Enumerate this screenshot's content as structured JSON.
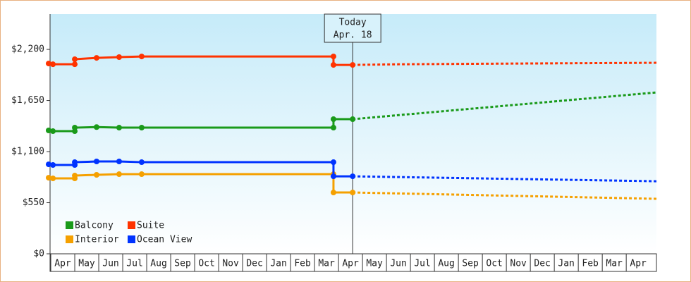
{
  "chart_data": {
    "type": "line",
    "ylim": [
      0,
      2580
    ],
    "yticks": [
      {
        "value": 0,
        "label": "$0"
      },
      {
        "value": 550,
        "label": "$550"
      },
      {
        "value": 1100,
        "label": "$1,100"
      },
      {
        "value": 1650,
        "label": "$1,650"
      },
      {
        "value": 2200,
        "label": "$2,200"
      }
    ],
    "xlim": [
      -0.03,
      25.26
    ],
    "xticks": [
      {
        "value": 0.5,
        "label": "Apr"
      },
      {
        "value": 1.5,
        "label": "May"
      },
      {
        "value": 2.5,
        "label": "Jun"
      },
      {
        "value": 3.5,
        "label": "Jul"
      },
      {
        "value": 4.5,
        "label": "Aug"
      },
      {
        "value": 5.5,
        "label": "Sep"
      },
      {
        "value": 6.5,
        "label": "Oct"
      },
      {
        "value": 7.5,
        "label": "Nov"
      },
      {
        "value": 8.5,
        "label": "Dec"
      },
      {
        "value": 9.5,
        "label": "Jan"
      },
      {
        "value": 10.5,
        "label": "Feb"
      },
      {
        "value": 11.5,
        "label": "Mar"
      },
      {
        "value": 12.5,
        "label": "Apr"
      },
      {
        "value": 13.5,
        "label": "May"
      },
      {
        "value": 14.5,
        "label": "Jun"
      },
      {
        "value": 15.5,
        "label": "Jul"
      },
      {
        "value": 16.5,
        "label": "Aug"
      },
      {
        "value": 17.5,
        "label": "Sep"
      },
      {
        "value": 18.5,
        "label": "Oct"
      },
      {
        "value": 19.5,
        "label": "Nov"
      },
      {
        "value": 20.5,
        "label": "Dec"
      },
      {
        "value": 21.5,
        "label": "Jan"
      },
      {
        "value": 22.5,
        "label": "Feb"
      },
      {
        "value": 23.5,
        "label": "Mar"
      },
      {
        "value": 24.5,
        "label": "Apr"
      }
    ],
    "annotations": [
      {
        "x": 12.59,
        "lines": [
          "Today",
          "Apr. 18"
        ]
      }
    ],
    "series": [
      {
        "name": "Balcony",
        "color": "#1a9a1a",
        "x": [
          -0.09,
          0.09,
          1.0,
          1.0,
          1.91,
          2.85,
          3.79,
          11.79,
          11.79,
          12.59
        ],
        "values": [
          1328,
          1320,
          1320,
          1358,
          1364,
          1358,
          1358,
          1358,
          1449,
          1449
        ],
        "forecast": {
          "x": [
            12.59,
            25.26
          ],
          "values": [
            1449,
            1737
          ]
        }
      },
      {
        "name": "Suite",
        "color": "#ff3300",
        "x": [
          -0.09,
          0.09,
          1.0,
          1.0,
          1.91,
          2.85,
          3.79,
          11.79,
          11.79,
          12.59
        ],
        "values": [
          2048,
          2040,
          2040,
          2094,
          2109,
          2117,
          2124,
          2124,
          2033,
          2033
        ],
        "forecast": {
          "x": [
            12.59,
            14.5,
            19.5,
            25.26
          ],
          "values": [
            2033,
            2040,
            2048,
            2056
          ]
        }
      },
      {
        "name": "Interior",
        "color": "#f5a000",
        "x": [
          -0.09,
          0.09,
          1.0,
          1.0,
          1.91,
          2.85,
          3.79,
          11.79,
          11.79,
          12.59
        ],
        "values": [
          819,
          812,
          812,
          842,
          850,
          857,
          857,
          857,
          660,
          660
        ],
        "forecast": {
          "x": [
            12.59,
            25.26
          ],
          "values": [
            660,
            592
          ]
        }
      },
      {
        "name": "Ocean View",
        "color": "#0033ff",
        "x": [
          -0.09,
          0.09,
          1.0,
          1.0,
          1.91,
          2.85,
          3.79,
          11.79,
          11.79,
          12.59
        ],
        "values": [
          963,
          956,
          956,
          986,
          994,
          994,
          986,
          986,
          834,
          834
        ],
        "forecast": {
          "x": [
            12.59,
            25.26
          ],
          "values": [
            834,
            781
          ]
        }
      }
    ]
  }
}
